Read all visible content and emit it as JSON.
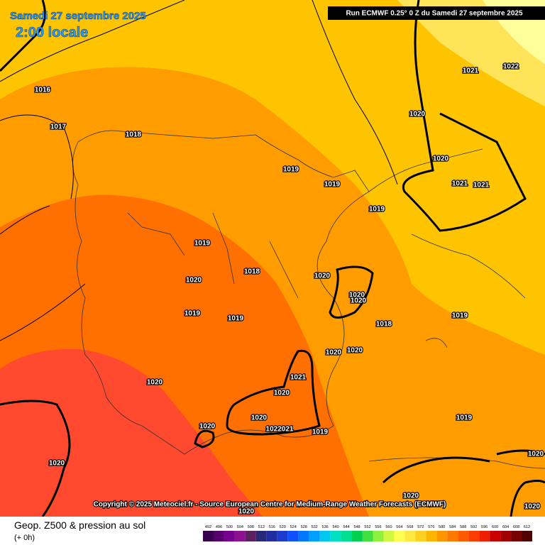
{
  "header": {
    "title": "Samedi 27 septembre 2025",
    "time": "2:00 locale",
    "run": "Run ECMWF 0.25° 0 Z du Samedi 27 septembre 2025"
  },
  "copyright": "Copyright © 2025 Meteociel.fr - Source European Centre for Medium-Range Weather Forecasts (ECMWF)",
  "footer": {
    "label": "Geop. Z500 & pression au sol",
    "lead": "(+ 0h)"
  },
  "isobar_labels": [
    "1016",
    "1017",
    "1018",
    "1019",
    "1019",
    "1019",
    "1020",
    "1021",
    "1022",
    "1020",
    "1021",
    "1021",
    "1019",
    "1018",
    "1020",
    "1020",
    "1020",
    "1020",
    "1019",
    "1019",
    "1018",
    "1019",
    "1020",
    "1020",
    "1021",
    "1020",
    "1020",
    "1020",
    "1022021",
    "1019",
    "1020",
    "1019",
    "1020",
    "1020",
    "1020",
    "1020",
    "1020"
  ],
  "legend": {
    "ticks": [
      492,
      496,
      500,
      504,
      508,
      512,
      516,
      520,
      524,
      528,
      532,
      536,
      540,
      544,
      548,
      552,
      556,
      560,
      564,
      568,
      572,
      576,
      580,
      584,
      588,
      592,
      596,
      600,
      604,
      608,
      612
    ],
    "colors": [
      "#3a0050",
      "#58006e",
      "#74008c",
      "#8c1090",
      "#5a2060",
      "#282878",
      "#202ca0",
      "#1c3cd0",
      "#1050ff",
      "#0078ff",
      "#00a0ff",
      "#00c8f0",
      "#00e0c0",
      "#00e090",
      "#00d050",
      "#40e040",
      "#90f040",
      "#d0f840",
      "#ffff50",
      "#ffe840",
      "#ffd020",
      "#ffb400",
      "#ff9600",
      "#ff7800",
      "#ff5a00",
      "#ff3c00",
      "#f01e00",
      "#c80000",
      "#a00000",
      "#780000",
      "#500000"
    ]
  }
}
